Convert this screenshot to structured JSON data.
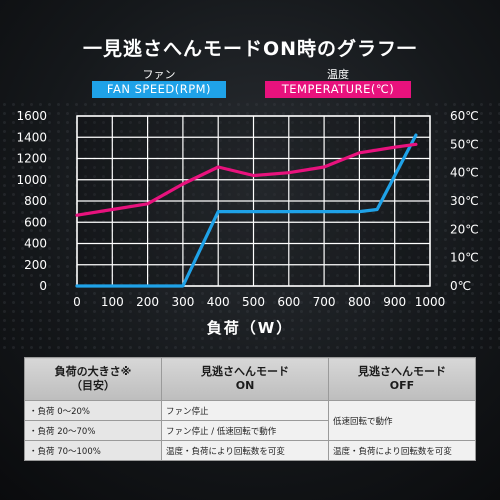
{
  "header": {
    "title": "一見逃さへんモードON時のグラフ一"
  },
  "legend": {
    "fan": {
      "sub": "ファン",
      "label": "FAN SPEED(RPM)",
      "color": "#1fa2e8"
    },
    "temp": {
      "sub": "温度",
      "label": "TEMPERATURE(℃)",
      "color": "#e8127d"
    }
  },
  "chart_data": {
    "type": "line",
    "x": [
      0,
      100,
      200,
      300,
      400,
      500,
      600,
      700,
      800,
      900,
      1000
    ],
    "x_ticks": [
      "0",
      "100",
      "200",
      "300",
      "400",
      "500",
      "600",
      "700",
      "800",
      "900",
      "1000"
    ],
    "xlabel": "負荷（W）",
    "xlim": [
      0,
      1000
    ],
    "left_axis": {
      "ticks": [
        "0",
        "200",
        "400",
        "600",
        "800",
        "1000",
        "1200",
        "1400",
        "1600"
      ],
      "ylim": [
        0,
        1600
      ]
    },
    "right_axis": {
      "ticks": [
        "0℃",
        "10℃",
        "20℃",
        "30℃",
        "40℃",
        "50℃",
        "60℃"
      ],
      "ylim": [
        0,
        60
      ]
    },
    "grid": true,
    "series": [
      {
        "name": "FAN SPEED(RPM)",
        "axis": "left",
        "color": "#1fa2e8",
        "points": [
          [
            0,
            0
          ],
          [
            300,
            0
          ],
          [
            400,
            700
          ],
          [
            800,
            700
          ],
          [
            850,
            720
          ],
          [
            960,
            1420
          ]
        ]
      },
      {
        "name": "TEMPERATURE(℃)",
        "axis": "right",
        "color": "#e8127d",
        "points": [
          [
            0,
            25
          ],
          [
            100,
            27
          ],
          [
            200,
            29
          ],
          [
            300,
            36
          ],
          [
            400,
            42
          ],
          [
            500,
            39
          ],
          [
            600,
            40
          ],
          [
            700,
            42
          ],
          [
            800,
            47
          ],
          [
            900,
            49
          ],
          [
            960,
            50
          ]
        ]
      }
    ]
  },
  "table": {
    "headers": [
      "負荷の大きさ※\n（目安）",
      "見逃さへんモード\nON",
      "見逃さへんモード\nOFF"
    ],
    "rows": [
      {
        "load": "・負荷 0〜20%",
        "on": "ファン停止"
      },
      {
        "load": "・負荷 20〜70%",
        "on": "ファン停止 / 低速回転で動作"
      },
      {
        "load": "・負荷 70〜100%",
        "on": "温度・負荷により回転数を可変"
      }
    ],
    "off": [
      "低速回転で動作",
      "温度・負荷により回転数を可変"
    ]
  }
}
